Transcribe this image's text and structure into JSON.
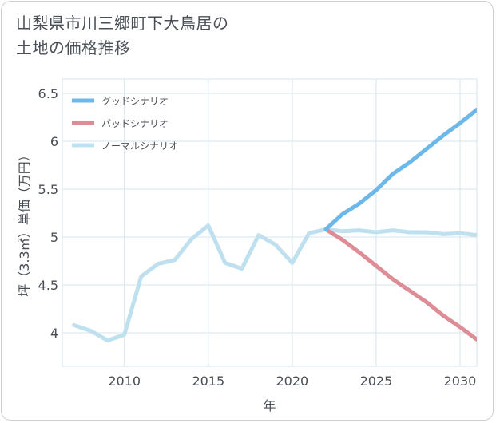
{
  "title": "山梨県市川三郷町下大鳥居の\n土地の価格推移",
  "chart_data": {
    "type": "line",
    "xlabel": "年",
    "ylabel": "坪（3.3㎡）単価（万円）",
    "xlim": [
      2006.3,
      2031
    ],
    "ylim": [
      3.65,
      6.65
    ],
    "xticks": [
      2010,
      2015,
      2020,
      2025,
      2030
    ],
    "yticks": [
      4,
      4.5,
      5,
      5.5,
      6,
      6.5
    ],
    "ytick_labels": [
      "4",
      "4.5",
      "5",
      "5.5",
      "6",
      "6.5"
    ],
    "grid": true,
    "legend_position": "top-left",
    "series": [
      {
        "name": "グッドシナリオ",
        "color": "#6cb8ea",
        "x": [
          2022,
          2023,
          2024,
          2025,
          2026,
          2027,
          2028,
          2029,
          2030,
          2031
        ],
        "y": [
          5.08,
          5.24,
          5.35,
          5.49,
          5.66,
          5.78,
          5.92,
          6.06,
          6.19,
          6.33
        ]
      },
      {
        "name": "バッドシナリオ",
        "color": "#de8c96",
        "x": [
          2022,
          2023,
          2024,
          2025,
          2026,
          2027,
          2028,
          2029,
          2030,
          2031
        ],
        "y": [
          5.08,
          4.97,
          4.84,
          4.7,
          4.56,
          4.44,
          4.32,
          4.18,
          4.06,
          3.93
        ]
      },
      {
        "name": "ノーマルシナリオ",
        "color": "#bfe0ee",
        "x": [
          2007,
          2008,
          2009,
          2010,
          2011,
          2012,
          2013,
          2014,
          2015,
          2016,
          2017,
          2018,
          2019,
          2020,
          2021,
          2022,
          2023,
          2024,
          2025,
          2026,
          2027,
          2028,
          2029,
          2030,
          2031
        ],
        "y": [
          4.08,
          4.02,
          3.92,
          3.98,
          4.59,
          4.72,
          4.76,
          4.98,
          5.12,
          4.73,
          4.67,
          5.02,
          4.92,
          4.73,
          5.04,
          5.08,
          5.06,
          5.07,
          5.05,
          5.07,
          5.05,
          5.05,
          5.03,
          5.04,
          5.02
        ]
      }
    ]
  }
}
